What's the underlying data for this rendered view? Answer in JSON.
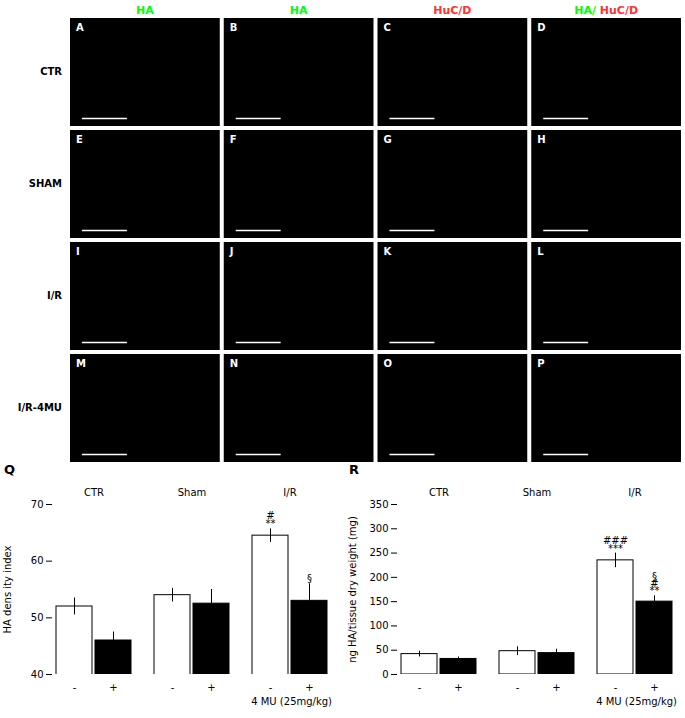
{
  "chart_data": [
    {
      "type": "image_grid",
      "column_labels": [
        [
          {
            "text": "HA",
            "color": "#00ff00"
          }
        ],
        [
          {
            "text": "HA",
            "color": "#00ff00"
          }
        ],
        [
          {
            "text": "HuC/D",
            "color": "#ff3333"
          }
        ],
        [
          {
            "text": "HA/ ",
            "color": "#00ff00"
          },
          {
            "text": "HuC/D",
            "color": "#ff3333"
          }
        ]
      ],
      "row_labels": [
        "CTR",
        "SHAM",
        "I/R",
        "I/R-4MU"
      ],
      "panel_labels": [
        "A",
        "B",
        "C",
        "D",
        "E",
        "F",
        "G",
        "H",
        "I",
        "J",
        "K",
        "L",
        "M",
        "N",
        "O",
        "P"
      ]
    },
    {
      "type": "bar",
      "title": "Q",
      "ylabel": "HA dens ity index",
      "xlabel": "4 MU (25mg/kg)",
      "categories": [
        "CTR",
        "Sham",
        "I/R"
      ],
      "series": [
        {
          "name": "-",
          "color": "white",
          "values": [
            52.0,
            54.0,
            64.5
          ],
          "errors": [
            1.5,
            1.2,
            1.2
          ]
        },
        {
          "name": "+",
          "color": "black",
          "values": [
            46.0,
            52.5,
            53.0
          ],
          "errors": [
            1.5,
            2.5,
            3.0
          ]
        }
      ],
      "ylim": [
        40,
        70
      ],
      "yticks": [
        40,
        50,
        60,
        70
      ],
      "annotations": [
        {
          "text": "**",
          "category": "I/R",
          "series": "-",
          "y": 66.0
        },
        {
          "text": "#",
          "category": "I/R",
          "series": "-",
          "y": 67.5
        },
        {
          "text": "§",
          "category": "I/R",
          "series": "+",
          "y": 56.3
        }
      ]
    },
    {
      "type": "bar",
      "title": "R",
      "ylabel": "ng HA/tissue dry weight (mg)",
      "xlabel": "4 MU (25mg/kg)",
      "categories": [
        "CTR",
        "Sham",
        "I/R"
      ],
      "series": [
        {
          "name": "-",
          "color": "white",
          "values": [
            42.0,
            48.0,
            235.0
          ],
          "errors": [
            6.0,
            9.0,
            15.0
          ]
        },
        {
          "name": "+",
          "color": "black",
          "values": [
            32.0,
            44.0,
            150.0
          ],
          "errors": [
            4.0,
            8.0,
            12.0
          ]
        }
      ],
      "ylim": [
        0,
        350
      ],
      "yticks": [
        0,
        50,
        100,
        150,
        200,
        250,
        300,
        350
      ],
      "annotations": [
        {
          "text": "***",
          "category": "I/R",
          "series": "-",
          "y": 253
        },
        {
          "text": "###",
          "category": "I/R",
          "series": "-",
          "y": 268
        },
        {
          "text": "**",
          "category": "I/R",
          "series": "+",
          "y": 165
        },
        {
          "text": "#",
          "category": "I/R",
          "series": "+",
          "y": 180
        },
        {
          "text": "§",
          "category": "I/R",
          "series": "+",
          "y": 195
        }
      ]
    }
  ]
}
